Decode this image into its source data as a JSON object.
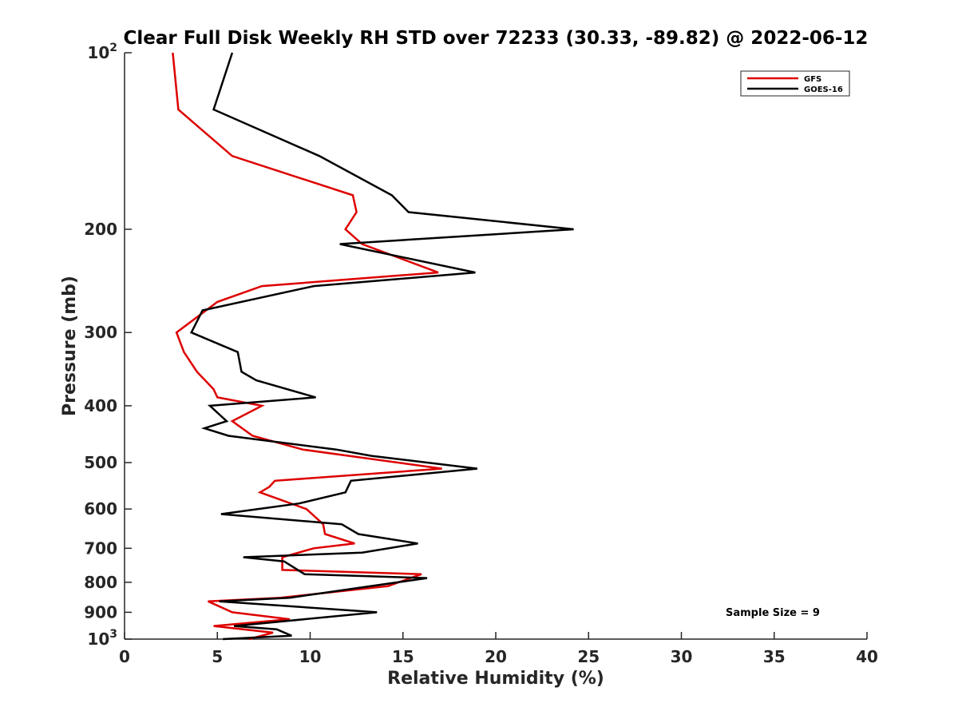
{
  "chart_data": {
    "type": "line",
    "title": "Clear Full Disk Weekly RH STD over 72233 (30.33, -89.82) @ 2022-06-12",
    "xlabel": "Relative Humidity (%)",
    "ylabel": "Pressure (mb)",
    "xlim": [
      0,
      40
    ],
    "ylim": [
      100,
      1000
    ],
    "y_scale": "log",
    "y_reversed": true,
    "grid": false,
    "legend_position": "top-right",
    "x_ticks": [
      0,
      5,
      10,
      15,
      20,
      25,
      30,
      35,
      40
    ],
    "y_ticks": [
      {
        "value": 100,
        "label": "10",
        "sup": "2"
      },
      {
        "value": 200,
        "label": "200",
        "sup": ""
      },
      {
        "value": 300,
        "label": "300",
        "sup": ""
      },
      {
        "value": 400,
        "label": "400",
        "sup": ""
      },
      {
        "value": 500,
        "label": "500",
        "sup": ""
      },
      {
        "value": 600,
        "label": "600",
        "sup": ""
      },
      {
        "value": 700,
        "label": "700",
        "sup": ""
      },
      {
        "value": 800,
        "label": "800",
        "sup": ""
      },
      {
        "value": 900,
        "label": "900",
        "sup": ""
      },
      {
        "value": 1000,
        "label": "10",
        "sup": "3"
      }
    ],
    "annotation": "Sample Size = 9",
    "series": [
      {
        "name": "GFS",
        "color": "#dd0000",
        "points": [
          [
            2.6,
            100
          ],
          [
            2.9,
            125
          ],
          [
            5.8,
            150
          ],
          [
            12.3,
            175
          ],
          [
            12.5,
            187
          ],
          [
            11.9,
            200
          ],
          [
            12.8,
            212
          ],
          [
            16.9,
            237
          ],
          [
            7.4,
            250
          ],
          [
            5.0,
            266
          ],
          [
            2.8,
            300
          ],
          [
            3.2,
            324
          ],
          [
            3.9,
            350
          ],
          [
            4.8,
            375
          ],
          [
            5.0,
            387
          ],
          [
            7.4,
            400
          ],
          [
            5.8,
            425
          ],
          [
            6.9,
            450
          ],
          [
            9.6,
            475
          ],
          [
            17.1,
            512
          ],
          [
            8.1,
            537
          ],
          [
            7.8,
            550
          ],
          [
            7.3,
            562
          ],
          [
            9.8,
            600
          ],
          [
            10.7,
            637
          ],
          [
            10.8,
            662
          ],
          [
            12.4,
            687
          ],
          [
            10.2,
            700
          ],
          [
            8.5,
            725
          ],
          [
            8.5,
            762
          ],
          [
            16.0,
            775
          ],
          [
            14.2,
            812
          ],
          [
            8.4,
            850
          ],
          [
            4.5,
            862
          ],
          [
            5.8,
            900
          ],
          [
            8.9,
            925
          ],
          [
            4.8,
            950
          ],
          [
            8.0,
            975
          ],
          [
            6.7,
            1000
          ]
        ]
      },
      {
        "name": "GOES-16",
        "color": "#000000",
        "points": [
          [
            5.8,
            100
          ],
          [
            4.8,
            125
          ],
          [
            10.5,
            150
          ],
          [
            14.4,
            175
          ],
          [
            15.3,
            187
          ],
          [
            24.2,
            200
          ],
          [
            11.6,
            212
          ],
          [
            18.9,
            237
          ],
          [
            10.2,
            250
          ],
          [
            4.2,
            275
          ],
          [
            3.6,
            300
          ],
          [
            6.1,
            324
          ],
          [
            6.3,
            350
          ],
          [
            7.1,
            362
          ],
          [
            10.3,
            387
          ],
          [
            4.6,
            400
          ],
          [
            5.5,
            425
          ],
          [
            4.3,
            437
          ],
          [
            5.6,
            450
          ],
          [
            11.4,
            475
          ],
          [
            13.3,
            487
          ],
          [
            19.0,
            512
          ],
          [
            12.2,
            537
          ],
          [
            11.9,
            562
          ],
          [
            9.4,
            587
          ],
          [
            5.2,
            612
          ],
          [
            11.7,
            637
          ],
          [
            12.6,
            662
          ],
          [
            15.8,
            687
          ],
          [
            12.8,
            712
          ],
          [
            6.4,
            725
          ],
          [
            8.6,
            737
          ],
          [
            9.7,
            775
          ],
          [
            16.3,
            787
          ],
          [
            8.9,
            850
          ],
          [
            5.1,
            862
          ],
          [
            13.6,
            900
          ],
          [
            5.9,
            950
          ],
          [
            8.2,
            962
          ],
          [
            9.0,
            987
          ],
          [
            5.3,
            1000
          ]
        ]
      }
    ]
  }
}
